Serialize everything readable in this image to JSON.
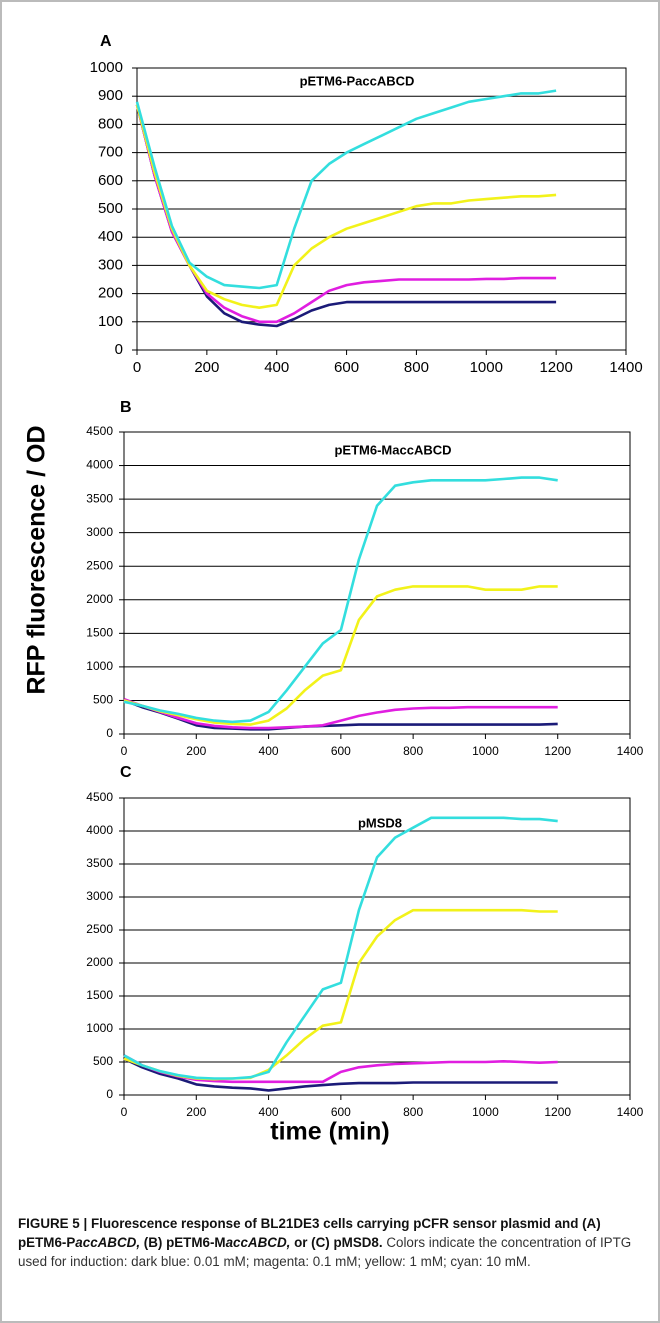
{
  "axis_labels": {
    "y": "RFP fluorescence / OD",
    "x": "time (min)"
  },
  "chart_data": [
    {
      "type": "line",
      "panel": "A",
      "annotation": "pETM6-PaccABCD",
      "x": [
        0,
        50,
        100,
        150,
        200,
        250,
        300,
        350,
        400,
        450,
        500,
        550,
        600,
        650,
        700,
        750,
        800,
        850,
        900,
        950,
        1000,
        1050,
        1100,
        1150,
        1200
      ],
      "series": [
        {
          "color": "#1b1b78",
          "values": [
            870,
            620,
            420,
            300,
            190,
            130,
            100,
            90,
            85,
            110,
            140,
            160,
            170,
            170,
            170,
            170,
            170,
            170,
            170,
            170,
            170,
            170,
            170,
            170,
            170
          ]
        },
        {
          "color": "#e01ee0",
          "values": [
            870,
            620,
            420,
            300,
            200,
            150,
            120,
            100,
            100,
            130,
            170,
            210,
            230,
            240,
            245,
            250,
            250,
            250,
            250,
            250,
            252,
            252,
            255,
            255,
            255
          ]
        },
        {
          "color": "#f2f21a",
          "values": [
            870,
            630,
            430,
            300,
            210,
            180,
            160,
            150,
            160,
            300,
            360,
            400,
            430,
            450,
            470,
            490,
            510,
            520,
            520,
            530,
            535,
            540,
            545,
            545,
            550
          ]
        },
        {
          "color": "#33dede",
          "values": [
            880,
            650,
            440,
            310,
            260,
            230,
            225,
            220,
            230,
            430,
            600,
            660,
            700,
            730,
            760,
            790,
            820,
            840,
            860,
            880,
            890,
            900,
            910,
            910,
            920
          ]
        }
      ],
      "xlim": [
        0,
        1400
      ],
      "xticks": [
        0,
        200,
        400,
        600,
        800,
        1000,
        1200,
        1400
      ],
      "ylim": [
        0,
        1000
      ],
      "yticks": [
        0,
        100,
        200,
        300,
        400,
        500,
        600,
        700,
        800,
        900,
        1000
      ],
      "grid": true
    },
    {
      "type": "line",
      "panel": "B",
      "annotation": "pETM6-MaccABCD",
      "x": [
        0,
        50,
        100,
        150,
        200,
        250,
        300,
        350,
        400,
        450,
        500,
        550,
        600,
        650,
        700,
        750,
        800,
        850,
        900,
        950,
        1000,
        1050,
        1100,
        1150,
        1200
      ],
      "series": [
        {
          "color": "#1b1b78",
          "values": [
            500,
            400,
            320,
            230,
            130,
            90,
            80,
            70,
            70,
            90,
            110,
            120,
            130,
            140,
            140,
            140,
            140,
            140,
            140,
            140,
            140,
            140,
            140,
            140,
            150
          ]
        },
        {
          "color": "#e01ee0",
          "values": [
            520,
            420,
            330,
            240,
            160,
            120,
            100,
            90,
            90,
            100,
            110,
            130,
            200,
            270,
            320,
            360,
            380,
            390,
            390,
            400,
            400,
            400,
            400,
            400,
            400
          ]
        },
        {
          "color": "#f2f21a",
          "values": [
            500,
            420,
            340,
            280,
            220,
            170,
            150,
            140,
            200,
            380,
            650,
            870,
            950,
            1700,
            2050,
            2150,
            2200,
            2200,
            2200,
            2200,
            2150,
            2150,
            2150,
            2200,
            2200
          ]
        },
        {
          "color": "#33dede",
          "values": [
            480,
            420,
            350,
            300,
            240,
            200,
            180,
            200,
            330,
            650,
            1000,
            1350,
            1550,
            2600,
            3400,
            3700,
            3750,
            3780,
            3780,
            3780,
            3780,
            3800,
            3820,
            3820,
            3780
          ]
        }
      ],
      "xlim": [
        0,
        1400
      ],
      "xticks": [
        0,
        200,
        400,
        600,
        800,
        1000,
        1200,
        1400
      ],
      "ylim": [
        0,
        4500
      ],
      "yticks": [
        0,
        500,
        1000,
        1500,
        2000,
        2500,
        3000,
        3500,
        4000,
        4500
      ],
      "grid": true
    },
    {
      "type": "line",
      "panel": "C",
      "annotation": "pMSD8",
      "x": [
        0,
        50,
        100,
        150,
        200,
        250,
        300,
        350,
        400,
        450,
        500,
        550,
        600,
        650,
        700,
        750,
        800,
        850,
        900,
        950,
        1000,
        1050,
        1100,
        1150,
        1200
      ],
      "series": [
        {
          "color": "#1b1b78",
          "values": [
            550,
            420,
            320,
            250,
            160,
            130,
            110,
            100,
            70,
            100,
            130,
            150,
            170,
            180,
            180,
            180,
            190,
            190,
            190,
            190,
            190,
            190,
            190,
            190,
            190
          ]
        },
        {
          "color": "#e01ee0",
          "values": [
            600,
            450,
            350,
            280,
            230,
            210,
            200,
            200,
            200,
            200,
            200,
            200,
            350,
            420,
            450,
            470,
            480,
            490,
            500,
            500,
            500,
            510,
            500,
            490,
            500
          ]
        },
        {
          "color": "#f2f21a",
          "values": [
            550,
            450,
            360,
            290,
            250,
            240,
            250,
            260,
            380,
            600,
            850,
            1050,
            1100,
            2000,
            2400,
            2650,
            2800,
            2800,
            2800,
            2800,
            2800,
            2800,
            2800,
            2780,
            2780
          ]
        },
        {
          "color": "#33dede",
          "values": [
            600,
            450,
            360,
            300,
            260,
            250,
            250,
            270,
            350,
            800,
            1200,
            1600,
            1700,
            2800,
            3600,
            3900,
            4050,
            4200,
            4200,
            4200,
            4200,
            4200,
            4180,
            4180,
            4150
          ]
        }
      ],
      "xlim": [
        0,
        1400
      ],
      "xticks": [
        0,
        200,
        400,
        600,
        800,
        1000,
        1200,
        1400
      ],
      "ylim": [
        0,
        4500
      ],
      "yticks": [
        0,
        500,
        1000,
        1500,
        2000,
        2500,
        3000,
        3500,
        4000,
        4500
      ],
      "grid": true
    }
  ],
  "caption": {
    "lead": [
      "FIGURE 5 | Fluorescence response of BL21DE3 cells carrying pCFR sensor plasmid and (A) pETM6-P",
      "accABCD,",
      " (B) pETM6-M",
      "accABCD,",
      " or (C) pMSD8."
    ],
    "body": "Colors indicate the concentration of IPTG used for induction: dark blue: 0.01 mM; magenta: 0.1 mM; yellow: 1 mM; cyan: 10 mM."
  }
}
